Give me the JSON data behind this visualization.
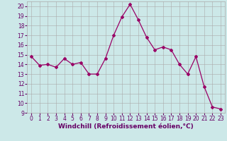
{
  "x": [
    0,
    1,
    2,
    3,
    4,
    5,
    6,
    7,
    8,
    9,
    10,
    11,
    12,
    13,
    14,
    15,
    16,
    17,
    18,
    19,
    20,
    21,
    22,
    23
  ],
  "y": [
    14.8,
    13.9,
    14.0,
    13.7,
    14.6,
    14.0,
    14.2,
    13.0,
    13.0,
    14.6,
    17.0,
    18.9,
    20.2,
    18.6,
    16.8,
    15.5,
    15.8,
    15.5,
    14.0,
    13.0,
    14.8,
    11.7,
    9.6,
    9.4
  ],
  "line_color": "#990066",
  "marker": "D",
  "marker_size": 2,
  "background_color": "#cce8e8",
  "grid_color": "#aaaaaa",
  "xlabel": "Windchill (Refroidissement éolien,°C)",
  "xlabel_color": "#660066",
  "tick_color": "#660066",
  "ylim": [
    9,
    20.5
  ],
  "xlim": [
    -0.5,
    23.5
  ],
  "yticks": [
    9,
    10,
    11,
    12,
    13,
    14,
    15,
    16,
    17,
    18,
    19,
    20
  ],
  "xticks": [
    0,
    1,
    2,
    3,
    4,
    5,
    6,
    7,
    8,
    9,
    10,
    11,
    12,
    13,
    14,
    15,
    16,
    17,
    18,
    19,
    20,
    21,
    22,
    23
  ],
  "tick_fontsize": 5.5,
  "xlabel_fontsize": 6.5
}
